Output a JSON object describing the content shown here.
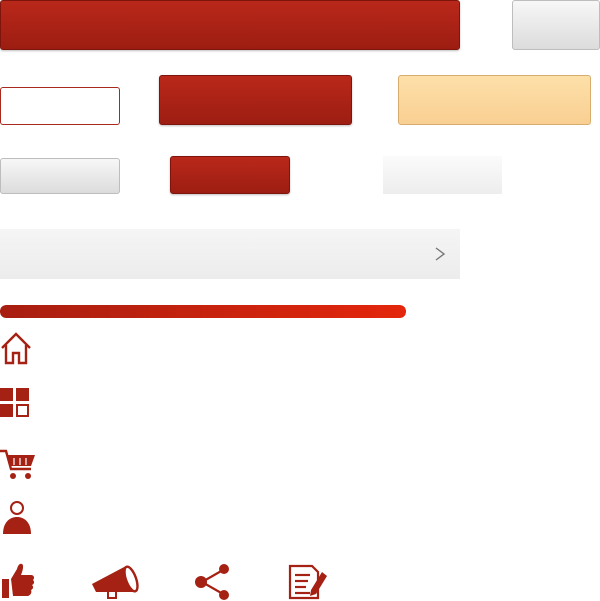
{
  "colors": {
    "primary_red": "#a52114",
    "peach": "#fbd79d",
    "gray": "#e6e6e6"
  },
  "progress": {
    "value_percent": 100
  },
  "list_row": {
    "chevron_icon": "chevron-right-icon"
  },
  "icons": {
    "home": "home-icon",
    "grid": "dashboard-grid-icon",
    "cart": "shopping-cart-icon",
    "user": "user-icon",
    "thumb": "thumbs-up-icon",
    "megaphone": "megaphone-icon",
    "share": "share-icon",
    "document_edit": "document-edit-icon"
  }
}
